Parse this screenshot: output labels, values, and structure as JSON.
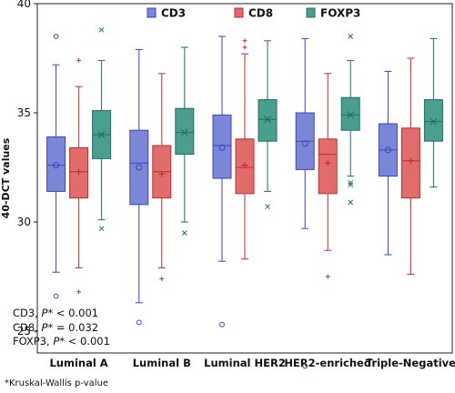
{
  "chart_data": {
    "type": "box",
    "ylabel": "40-DCT values",
    "ylim": [
      24,
      40
    ],
    "yticks": [
      25,
      30,
      35,
      40
    ],
    "grid": false,
    "legend_position": "top",
    "categories": [
      "Luminal A",
      "Luminal B",
      "Luminal HER2",
      "HER2-enriched",
      "Triple-Negative"
    ],
    "series": [
      {
        "name": "CD3",
        "color": "#7b86d6",
        "edge": "#3b45c4",
        "mean_marker": "circle",
        "boxes": [
          {
            "whislo": 27.7,
            "q1": 31.4,
            "med": 32.6,
            "q3": 33.9,
            "whishi": 37.2,
            "mean": 32.6,
            "fliers": [
              38.5,
              26.6
            ]
          },
          {
            "whislo": 26.3,
            "q1": 30.8,
            "med": 32.7,
            "q3": 34.2,
            "whishi": 37.9,
            "mean": 32.5,
            "fliers": [
              25.4
            ]
          },
          {
            "whislo": 28.2,
            "q1": 32.0,
            "med": 33.5,
            "q3": 34.9,
            "whishi": 38.5,
            "mean": 33.4,
            "fliers": [
              25.3
            ]
          },
          {
            "whislo": 29.7,
            "q1": 32.4,
            "med": 33.7,
            "q3": 35.0,
            "whishi": 38.4,
            "mean": 33.6,
            "fliers": [
              23.4
            ]
          },
          {
            "whislo": 28.5,
            "q1": 32.1,
            "med": 33.3,
            "q3": 34.5,
            "whishi": 36.9,
            "mean": 33.3,
            "fliers": []
          }
        ]
      },
      {
        "name": "CD8",
        "color": "#e06c6c",
        "edge": "#c32b2b",
        "mean_marker": "plus",
        "boxes": [
          {
            "whislo": 27.9,
            "q1": 31.1,
            "med": 32.3,
            "q3": 33.4,
            "whishi": 36.2,
            "mean": 32.3,
            "fliers": [
              37.4,
              26.8
            ]
          },
          {
            "whislo": 27.9,
            "q1": 31.1,
            "med": 32.3,
            "q3": 33.5,
            "whishi": 36.8,
            "mean": 32.2,
            "fliers": [
              27.4
            ]
          },
          {
            "whislo": 28.3,
            "q1": 31.3,
            "med": 32.5,
            "q3": 33.8,
            "whishi": 37.7,
            "mean": 32.6,
            "fliers": [
              38.3,
              38.0
            ]
          },
          {
            "whislo": 28.7,
            "q1": 31.3,
            "med": 33.1,
            "q3": 33.8,
            "whishi": 36.8,
            "mean": 32.7,
            "fliers": [
              27.5
            ]
          },
          {
            "whislo": 27.6,
            "q1": 31.1,
            "med": 32.8,
            "q3": 34.3,
            "whishi": 37.5,
            "mean": 32.8,
            "fliers": []
          }
        ]
      },
      {
        "name": "FOXP3",
        "color": "#4a9e8e",
        "edge": "#1e7060",
        "mean_marker": "x",
        "boxes": [
          {
            "whislo": 30.1,
            "q1": 32.9,
            "med": 34.0,
            "q3": 35.1,
            "whishi": 37.4,
            "mean": 34.0,
            "fliers": [
              38.8,
              29.7
            ]
          },
          {
            "whislo": 30.0,
            "q1": 33.1,
            "med": 34.1,
            "q3": 35.2,
            "whishi": 38.0,
            "mean": 34.1,
            "fliers": [
              29.5
            ]
          },
          {
            "whislo": 31.4,
            "q1": 33.7,
            "med": 34.7,
            "q3": 35.6,
            "whishi": 38.3,
            "mean": 34.7,
            "fliers": [
              30.7
            ]
          },
          {
            "whislo": 32.1,
            "q1": 34.2,
            "med": 34.9,
            "q3": 35.7,
            "whishi": 37.4,
            "mean": 34.9,
            "fliers": [
              38.5,
              31.8,
              31.7,
              30.9
            ]
          },
          {
            "whislo": 31.6,
            "q1": 33.7,
            "med": 34.6,
            "q3": 35.6,
            "whishi": 38.4,
            "mean": 34.6,
            "fliers": []
          }
        ]
      }
    ]
  },
  "stats": [
    {
      "marker": "CD3, ",
      "p": "P",
      "rel": "* < 0.001"
    },
    {
      "marker": "CD8, ",
      "p": "P",
      "rel": "* = 0.032"
    },
    {
      "marker": "FOXP3, ",
      "p": "P",
      "rel": "* < 0.001"
    }
  ],
  "footnote": "*Kruskal-Wallis p-value"
}
